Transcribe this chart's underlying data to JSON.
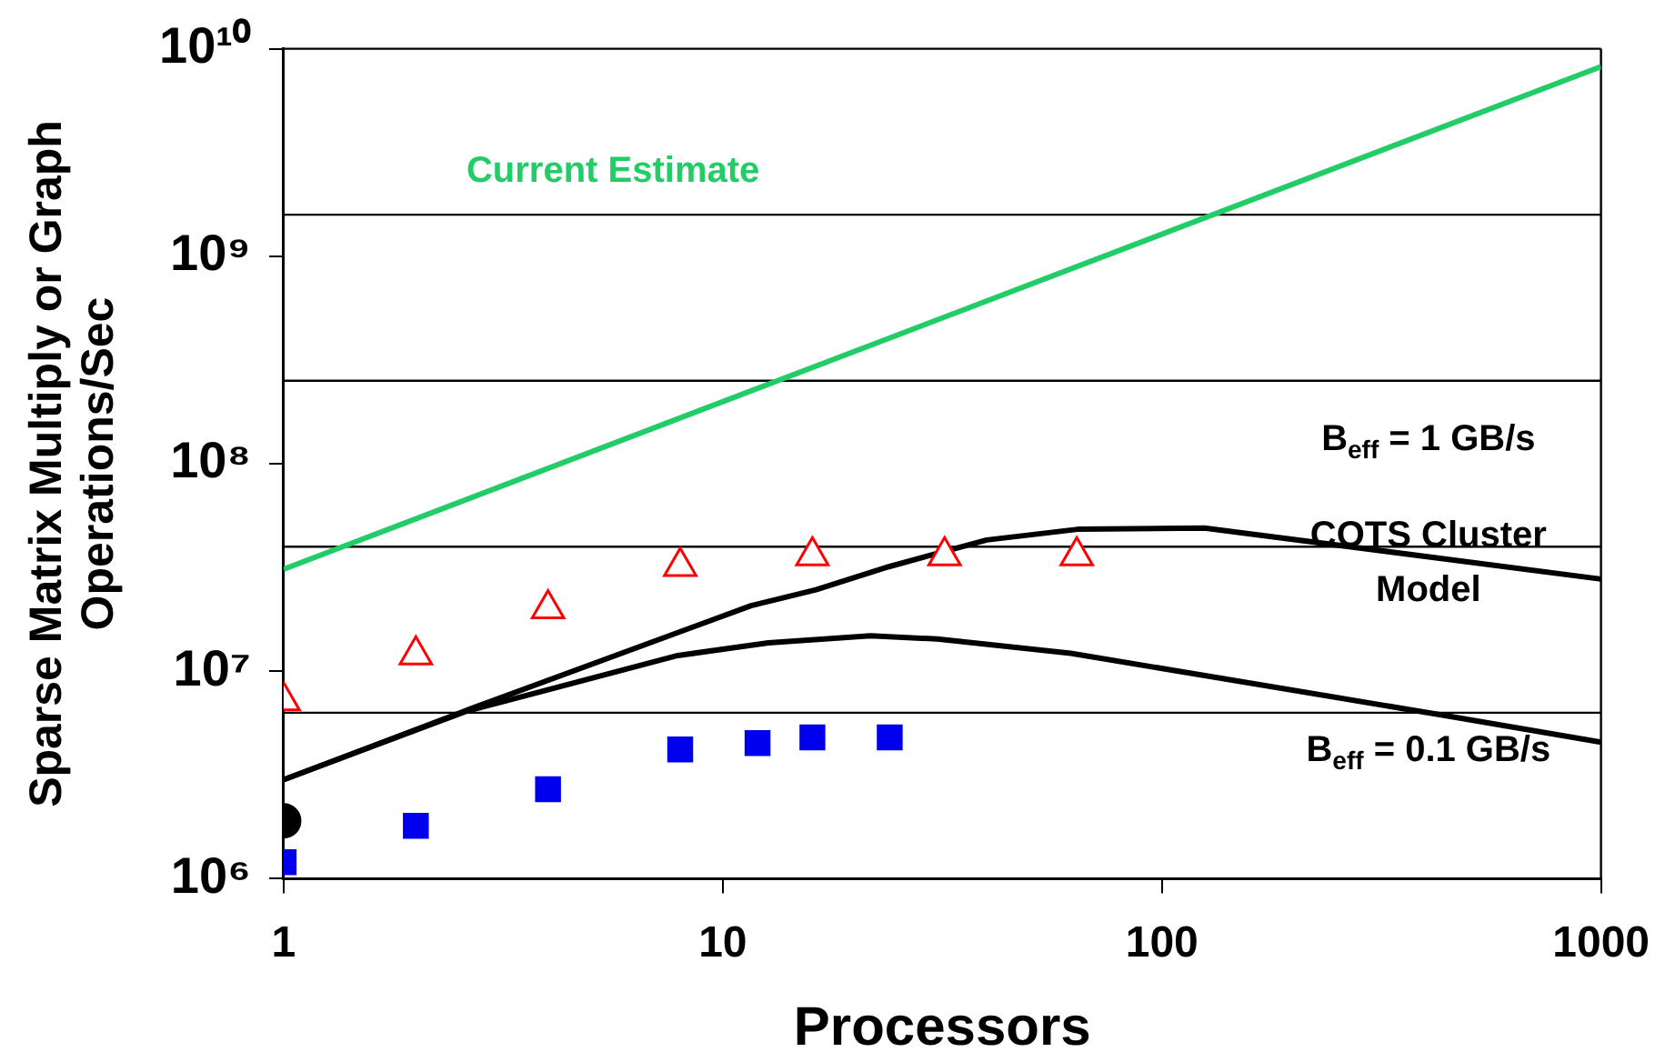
{
  "chart_data": {
    "type": "scatter",
    "xlabel": "Processors",
    "ylabel": "Sparse Matrix Multiply or Graph Operations/Sec",
    "log": "xy",
    "grid": false,
    "legend": false,
    "xlim": [
      1,
      1000
    ],
    "xticks": [
      1,
      10,
      100,
      1000
    ],
    "ylim": [
      1000000,
      10000000000
    ],
    "yticks": [
      {
        "value": 1000000,
        "label": "10⁶"
      },
      {
        "value": 10000000,
        "label": "10⁷"
      },
      {
        "value": 100000000,
        "label": "10⁸"
      },
      {
        "value": 1000000000,
        "label": "10⁹"
      },
      {
        "value": 10000000000,
        "label": "10¹⁰"
      }
    ],
    "series": [
      {
        "name": "Current Estimate",
        "type": "line",
        "color": "#22cc66",
        "marker": "none",
        "x": [
          1,
          1000
        ],
        "values": [
          31000000,
          8200000000
        ]
      },
      {
        "type": "line",
        "color": "#000000",
        "marker": "none",
        "x": [
          1,
          2.67,
          11.6,
          16.3,
          23.9,
          39.9,
          64.3,
          125,
          1000
        ],
        "values": [
          3000000,
          6600000,
          20700000,
          24700000,
          31900000,
          42900000,
          48300000,
          49000000,
          27800000
        ]
      },
      {
        "type": "line",
        "color": "#000000",
        "marker": "none",
        "x": [
          1,
          2.6,
          7.9,
          12.7,
          21.7,
          30.8,
          62,
          445,
          1000
        ],
        "values": [
          3000000,
          6400000,
          11900000,
          13700000,
          14800000,
          14300000,
          12200000,
          6100000,
          4550000
        ]
      },
      {
        "color": "#ff0000",
        "marker": "triangle",
        "x": [
          1,
          2,
          4,
          8,
          16,
          32,
          64
        ],
        "values": [
          7200000,
          12000000,
          20000000,
          32000000,
          36000000,
          36000000,
          36000000
        ]
      },
      {
        "color": "#0000ee",
        "marker": "square",
        "x": [
          1,
          2,
          4,
          8,
          12,
          16,
          24
        ],
        "values": [
          1200000,
          1800000,
          2700000,
          4200000,
          4500000,
          4800000,
          4800000
        ]
      },
      {
        "color": "#000000",
        "marker": "circle",
        "x": [
          1
        ],
        "values": [
          1900000
        ]
      }
    ],
    "ref_lines": [
      {
        "axis": "y",
        "value": 6309573,
        "color": "#000000"
      },
      {
        "axis": "y",
        "value": 39810717,
        "color": "#000000"
      },
      {
        "axis": "y",
        "value": 251188643,
        "color": "#000000"
      },
      {
        "axis": "y",
        "value": 1584893192,
        "color": "#000000"
      }
    ],
    "annotations": [
      "B$_{eff}$ = 1 GB/s",
      "COTS Cluster Model",
      "B$_{eff}$ = 0.1 GB/s"
    ]
  }
}
